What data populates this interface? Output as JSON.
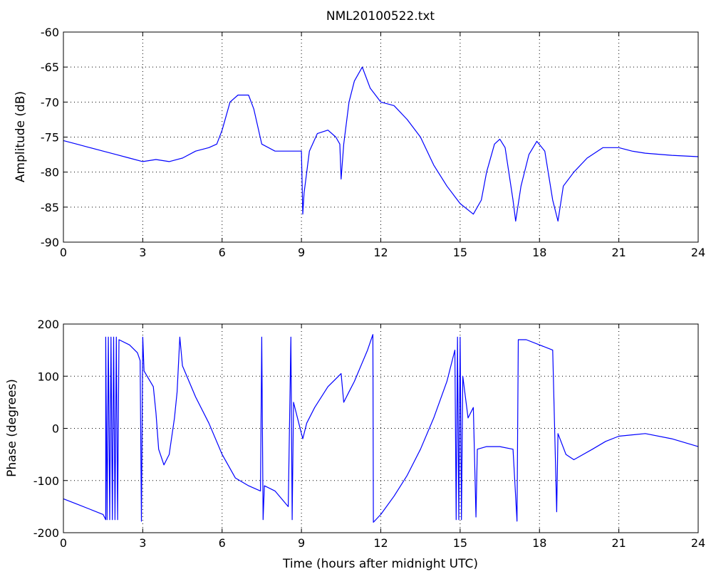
{
  "title": "NML20100522.txt",
  "colors": {
    "line": "#0000ff",
    "axes": "#000000",
    "grid": "#000000",
    "background": "#ffffff"
  },
  "chart_data": [
    {
      "type": "line",
      "title": "NML20100522.txt",
      "xlabel": "",
      "ylabel": "Amplitude (dB)",
      "xlim": [
        0,
        24
      ],
      "ylim": [
        -90,
        -60
      ],
      "xticks": [
        0,
        3,
        6,
        9,
        12,
        15,
        18,
        21,
        24
      ],
      "yticks": [
        -90,
        -85,
        -80,
        -75,
        -70,
        -65,
        -60
      ],
      "grid": true,
      "series": [
        {
          "points": [
            [
              0,
              -75.5
            ],
            [
              0.5,
              -76
            ],
            [
              1,
              -76.5
            ],
            [
              1.5,
              -77
            ],
            [
              2,
              -77.5
            ],
            [
              2.5,
              -78
            ],
            [
              3,
              -78.5
            ],
            [
              3.5,
              -78.2
            ],
            [
              4,
              -78.5
            ],
            [
              4.5,
              -78
            ],
            [
              5,
              -77
            ],
            [
              5.5,
              -76.5
            ],
            [
              5.8,
              -76
            ],
            [
              6,
              -74
            ],
            [
              6.3,
              -70
            ],
            [
              6.6,
              -69
            ],
            [
              7,
              -69
            ],
            [
              7.2,
              -71
            ],
            [
              7.5,
              -76
            ],
            [
              8,
              -77
            ],
            [
              8.5,
              -77
            ],
            [
              9,
              -77
            ],
            [
              9.05,
              -86
            ],
            [
              9.1,
              -83
            ],
            [
              9.3,
              -77
            ],
            [
              9.6,
              -74.5
            ],
            [
              10,
              -74
            ],
            [
              10.3,
              -75
            ],
            [
              10.45,
              -76
            ],
            [
              10.5,
              -81
            ],
            [
              10.6,
              -76
            ],
            [
              10.8,
              -70
            ],
            [
              11,
              -67
            ],
            [
              11.3,
              -65
            ],
            [
              11.6,
              -68
            ],
            [
              12,
              -70
            ],
            [
              12.5,
              -70.5
            ],
            [
              13,
              -72.5
            ],
            [
              13.5,
              -75
            ],
            [
              14,
              -79
            ],
            [
              14.5,
              -82
            ],
            [
              15,
              -84.5
            ],
            [
              15.5,
              -86
            ],
            [
              15.8,
              -84
            ],
            [
              16,
              -80
            ],
            [
              16.3,
              -76
            ],
            [
              16.5,
              -75.3
            ],
            [
              16.7,
              -76.5
            ],
            [
              17,
              -84
            ],
            [
              17.1,
              -87
            ],
            [
              17.3,
              -82
            ],
            [
              17.6,
              -77.5
            ],
            [
              17.9,
              -75.6
            ],
            [
              18.2,
              -77
            ],
            [
              18.5,
              -84
            ],
            [
              18.7,
              -87
            ],
            [
              18.9,
              -82
            ],
            [
              19.3,
              -80
            ],
            [
              19.8,
              -78
            ],
            [
              20.4,
              -76.5
            ],
            [
              21,
              -76.5
            ],
            [
              21.5,
              -77
            ],
            [
              22,
              -77.3
            ],
            [
              23,
              -77.6
            ],
            [
              24,
              -77.8
            ]
          ]
        }
      ]
    },
    {
      "type": "line",
      "title": "",
      "xlabel": "Time (hours after midnight UTC)",
      "ylabel": "Phase (degrees)",
      "xlim": [
        0,
        24
      ],
      "ylim": [
        -200,
        200
      ],
      "xticks": [
        0,
        3,
        6,
        9,
        12,
        15,
        18,
        21,
        24
      ],
      "yticks": [
        -200,
        -100,
        0,
        100,
        200
      ],
      "grid": true,
      "series": [
        {
          "points": [
            [
              0,
              -135
            ],
            [
              0.5,
              -145
            ],
            [
              1,
              -155
            ],
            [
              1.5,
              -165
            ],
            [
              1.6,
              -175
            ],
            [
              1.6,
              175
            ],
            [
              1.65,
              -175
            ],
            [
              1.7,
              175
            ],
            [
              1.75,
              -175
            ],
            [
              1.8,
              175
            ],
            [
              1.85,
              -175
            ],
            [
              1.9,
              175
            ],
            [
              1.95,
              -175
            ],
            [
              2,
              175
            ],
            [
              2.05,
              -175
            ],
            [
              2.1,
              170
            ],
            [
              2.5,
              160
            ],
            [
              2.8,
              145
            ],
            [
              2.9,
              130
            ],
            [
              2.95,
              -178
            ],
            [
              3,
              175
            ],
            [
              3.05,
              110
            ],
            [
              3.4,
              80
            ],
            [
              3.5,
              30
            ],
            [
              3.6,
              -40
            ],
            [
              3.8,
              -70
            ],
            [
              4,
              -50
            ],
            [
              4.2,
              20
            ],
            [
              4.3,
              70
            ],
            [
              4.4,
              175
            ],
            [
              4.5,
              120
            ],
            [
              5,
              60
            ],
            [
              5.5,
              10
            ],
            [
              6,
              -50
            ],
            [
              6.5,
              -95
            ],
            [
              7,
              -110
            ],
            [
              7.45,
              -120
            ],
            [
              7.5,
              175
            ],
            [
              7.55,
              -175
            ],
            [
              7.6,
              -110
            ],
            [
              8,
              -120
            ],
            [
              8.5,
              -150
            ],
            [
              8.6,
              175
            ],
            [
              8.65,
              -175
            ],
            [
              8.7,
              50
            ],
            [
              9,
              -10
            ],
            [
              9.05,
              -20
            ],
            [
              9.2,
              10
            ],
            [
              9.5,
              40
            ],
            [
              10,
              80
            ],
            [
              10.5,
              105
            ],
            [
              10.6,
              50
            ],
            [
              10.8,
              70
            ],
            [
              11,
              90
            ],
            [
              11.5,
              150
            ],
            [
              11.7,
              180
            ],
            [
              11.72,
              -180
            ],
            [
              12,
              -165
            ],
            [
              12.5,
              -130
            ],
            [
              13,
              -90
            ],
            [
              13.5,
              -40
            ],
            [
              14,
              20
            ],
            [
              14.5,
              90
            ],
            [
              14.8,
              150
            ],
            [
              14.85,
              -175
            ],
            [
              14.9,
              175
            ],
            [
              14.95,
              -175
            ],
            [
              15,
              175
            ],
            [
              15.05,
              -175
            ],
            [
              15.1,
              100
            ],
            [
              15.3,
              20
            ],
            [
              15.5,
              40
            ],
            [
              15.6,
              -170
            ],
            [
              15.65,
              -40
            ],
            [
              16,
              -35
            ],
            [
              16.5,
              -35
            ],
            [
              17,
              -40
            ],
            [
              17.15,
              -178
            ],
            [
              17.2,
              170
            ],
            [
              17.5,
              170
            ],
            [
              18,
              160
            ],
            [
              18.5,
              150
            ],
            [
              18.65,
              -160
            ],
            [
              18.7,
              -10
            ],
            [
              19,
              -50
            ],
            [
              19.3,
              -60
            ],
            [
              20,
              -40
            ],
            [
              20.5,
              -25
            ],
            [
              21,
              -15
            ],
            [
              22,
              -10
            ],
            [
              23,
              -20
            ],
            [
              24,
              -35
            ]
          ]
        }
      ]
    }
  ]
}
